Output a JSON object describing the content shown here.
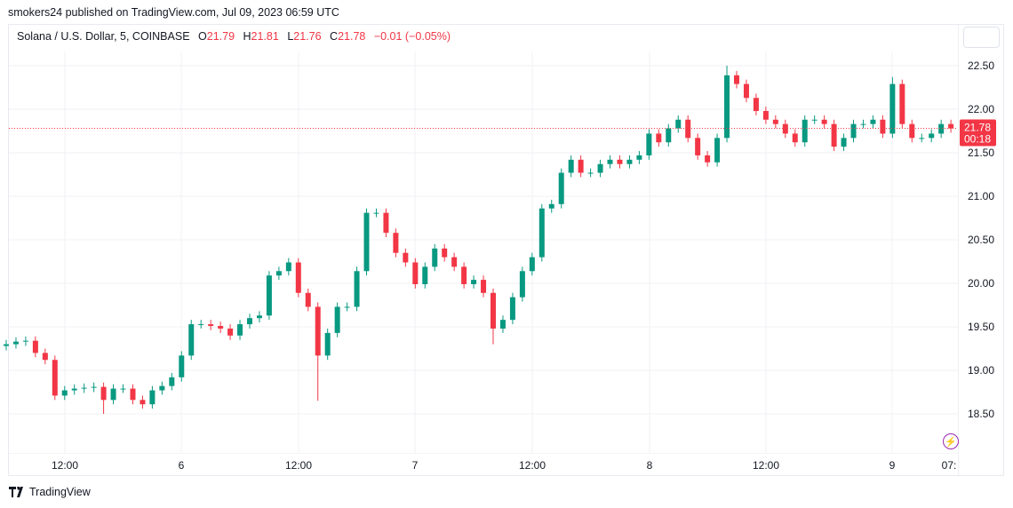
{
  "header": {
    "published": "smokers24 published on TradingView.com, Jul 09, 2023 06:59 UTC"
  },
  "legend": {
    "symbol": "Solana / U.S. Dollar, 5, COINBASE",
    "o_label": "O",
    "o": "21.79",
    "h_label": "H",
    "h": "21.81",
    "l_label": "L",
    "l": "21.76",
    "c_label": "C",
    "c": "21.78",
    "change": "−0.01 (−0.05%)"
  },
  "last_price": {
    "value": "21.78",
    "countdown": "00:18",
    "color": "#f23645"
  },
  "footer": {
    "brand": "TradingView"
  },
  "icons": {
    "bolt": "lightning-icon",
    "logo": "tradingview-logo-icon"
  },
  "colors": {
    "up": "#089981",
    "down": "#f23645",
    "grid": "#f0f2f5",
    "bolt": "#9c27b0"
  },
  "chart_data": {
    "type": "candlestick",
    "title": "Solana / U.S. Dollar, 5, COINBASE",
    "grid": true,
    "ylim": [
      18.1,
      22.85
    ],
    "y_ticks": [
      "18.50",
      "19.00",
      "19.50",
      "20.00",
      "20.50",
      "21.00",
      "21.50",
      "22.00",
      "22.50"
    ],
    "x_ticks": [
      "12:00",
      "6",
      "12:00",
      "7",
      "12:00",
      "8",
      "12:00",
      "9",
      "07:"
    ],
    "series_start": "Jul 05 06:00",
    "sample_interval": "1h",
    "closes": [
      19.3,
      19.33,
      19.34,
      19.2,
      19.12,
      18.71,
      18.77,
      18.79,
      18.8,
      18.81,
      18.66,
      18.79,
      18.79,
      18.66,
      18.61,
      18.77,
      18.82,
      18.92,
      19.17,
      19.53,
      19.53,
      19.51,
      19.48,
      19.4,
      19.53,
      19.6,
      19.63,
      20.09,
      20.14,
      20.24,
      19.89,
      19.73,
      19.17,
      19.43,
      19.73,
      19.73,
      20.14,
      20.81,
      20.81,
      20.58,
      20.35,
      20.24,
      19.99,
      20.19,
      20.4,
      20.3,
      20.19,
      19.99,
      20.04,
      19.89,
      19.48,
      19.58,
      19.84,
      20.14,
      20.3,
      20.86,
      20.91,
      21.27,
      21.42,
      21.27,
      21.27,
      21.37,
      21.42,
      21.37,
      21.42,
      21.47,
      21.72,
      21.62,
      21.78,
      21.88,
      21.67,
      21.47,
      21.39,
      21.67,
      22.39,
      22.29,
      22.13,
      21.98,
      21.88,
      21.83,
      21.72,
      21.62,
      21.88,
      21.88,
      21.83,
      21.57,
      21.67,
      21.83,
      21.83,
      21.88,
      21.72,
      22.29,
      21.83,
      21.67,
      21.67,
      21.72,
      21.83,
      21.78
    ],
    "notable_lows": [
      {
        "after_hour": 10,
        "low": 18.5
      },
      {
        "after_hour": 32,
        "low": 18.65
      },
      {
        "after_hour": 50,
        "low": 19.3
      }
    ],
    "notable_highs": [
      {
        "after_hour": 74,
        "high": 22.5
      },
      {
        "after_hour": 91,
        "high": 22.37
      }
    ]
  }
}
